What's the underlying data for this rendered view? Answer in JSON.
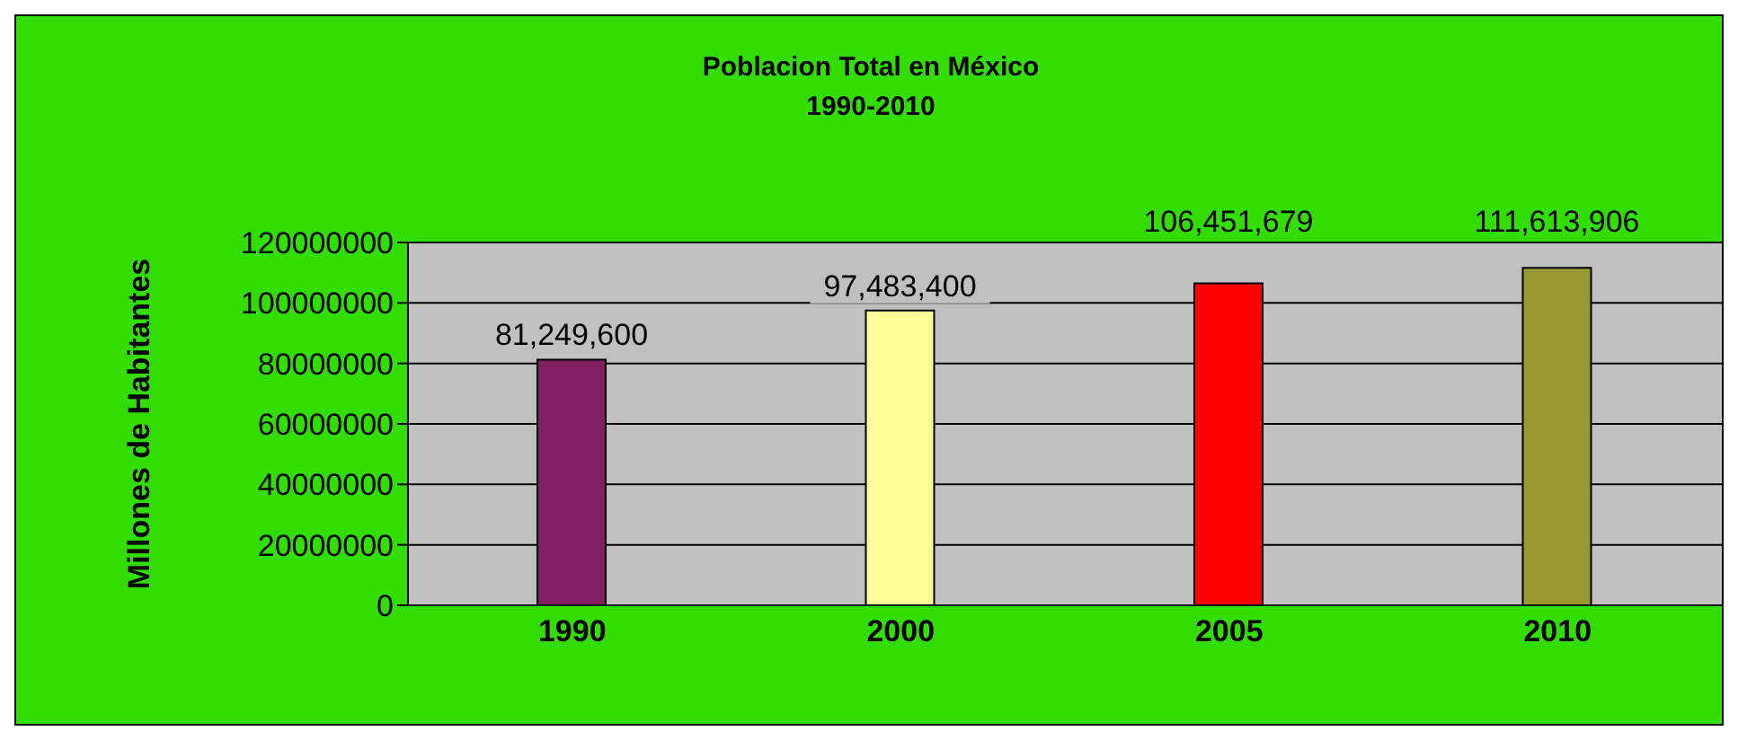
{
  "chart_data": {
    "type": "bar",
    "title": "Poblacion Total en México",
    "subtitle": "1990-2010",
    "ylabel": "Millones de Habitantes",
    "categories": [
      "1990",
      "2000",
      "2005",
      "2010"
    ],
    "values": [
      81249600,
      97483400,
      106451679,
      111613906
    ],
    "colors": [
      "#802060",
      "#ffff99",
      "#ff0000",
      "#999933"
    ],
    "value_labels": [
      "81,249,600",
      "97,483,400",
      "106,451,679",
      "111,613,906"
    ],
    "ylim": [
      0,
      120000000
    ],
    "yticks": [
      0,
      20000000,
      40000000,
      60000000,
      80000000,
      100000000,
      120000000
    ],
    "grid": "y"
  }
}
